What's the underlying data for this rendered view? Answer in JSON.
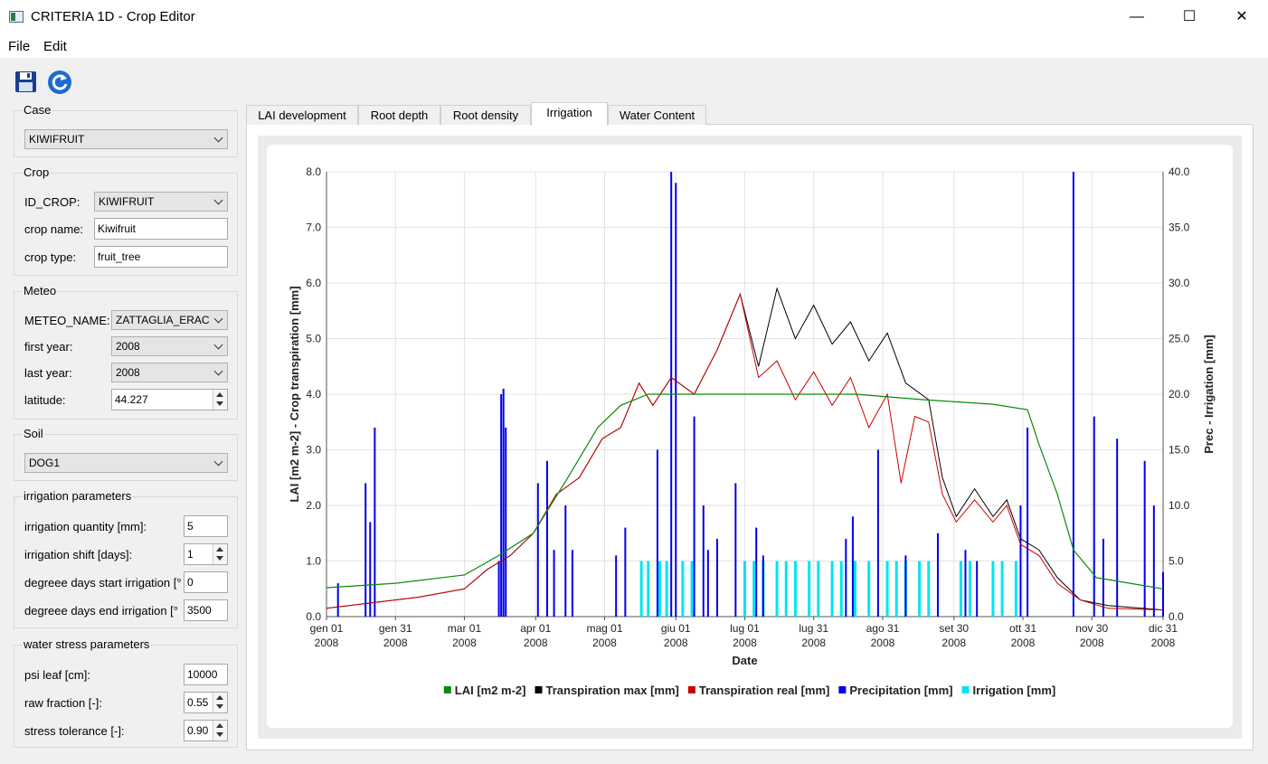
{
  "window": {
    "title": "CRITERIA 1D - Crop Editor",
    "minimize": "—",
    "maximize": "☐",
    "close": "✕"
  },
  "menu": {
    "file": "File",
    "edit": "Edit"
  },
  "toolbar": {
    "save_icon": "save-icon",
    "reload_icon": "refresh-icon"
  },
  "case": {
    "title": "Case",
    "value": "KIWIFRUIT"
  },
  "crop": {
    "title": "Crop",
    "id_label": "ID_CROP:",
    "id_value": "KIWIFRUIT",
    "name_label": "crop name:",
    "name_value": "Kiwifruit",
    "type_label": "crop type:",
    "type_value": "fruit_tree"
  },
  "meteo": {
    "title": "Meteo",
    "name_label": "METEO_NAME:",
    "name_value": "ZATTAGLIA_ERAC",
    "first_label": "first year:",
    "first_value": "2008",
    "last_label": "last year:",
    "last_value": "2008",
    "lat_label": "latitude:",
    "lat_value": "44.227"
  },
  "soil": {
    "title": "Soil",
    "value": "DOG1"
  },
  "irrigation": {
    "title": "irrigation parameters",
    "qty_label": "irrigation quantity [mm]:",
    "qty_value": "5",
    "shift_label": "irrigation shift [days]:",
    "shift_value": "1",
    "start_label": "degreee days start irrigation [°",
    "start_value": "0",
    "end_label": "degreee days end irrigation [°",
    "end_value": "3500"
  },
  "stress": {
    "title": "water stress parameters",
    "psi_label": "psi leaf [cm]:",
    "psi_value": "10000",
    "raw_label": "raw fraction [-]:",
    "raw_value": "0.55",
    "tol_label": "stress tolerance [-]:",
    "tol_value": "0.90"
  },
  "tabs": [
    {
      "label": "LAI development",
      "active": false
    },
    {
      "label": "Root depth",
      "active": false
    },
    {
      "label": "Root density",
      "active": false
    },
    {
      "label": "Irrigation",
      "active": true
    },
    {
      "label": "Water Content",
      "active": false
    }
  ],
  "chart_data": {
    "type": "bar+line",
    "xlabel": "Date",
    "ylabel_left": "LAI [m2 m-2] - Crop transpiration [mm]",
    "ylabel_right": "Prec - Irrigation [mm]",
    "ylim_left": [
      0,
      8
    ],
    "ylim_right": [
      0,
      40
    ],
    "yticks_left": [
      "0.0",
      "1.0",
      "2.0",
      "3.0",
      "4.0",
      "5.0",
      "6.0",
      "7.0",
      "8.0"
    ],
    "yticks_right": [
      "0.0",
      "5.0",
      "10.0",
      "15.0",
      "20.0",
      "25.0",
      "30.0",
      "35.0",
      "40.0"
    ],
    "xticks": [
      {
        "day": 0,
        "label": "gen 01",
        "year": "2008"
      },
      {
        "day": 30,
        "label": "gen 31",
        "year": "2008"
      },
      {
        "day": 60,
        "label": "mar 01",
        "year": "2008"
      },
      {
        "day": 91,
        "label": "apr 01",
        "year": "2008"
      },
      {
        "day": 121,
        "label": "mag 01",
        "year": "2008"
      },
      {
        "day": 152,
        "label": "giu 01",
        "year": "2008"
      },
      {
        "day": 182,
        "label": "lug 01",
        "year": "2008"
      },
      {
        "day": 212,
        "label": "lug 31",
        "year": "2008"
      },
      {
        "day": 242,
        "label": "ago 31",
        "year": "2008"
      },
      {
        "day": 273,
        "label": "set 30",
        "year": "2008"
      },
      {
        "day": 303,
        "label": "ott 31",
        "year": "2008"
      },
      {
        "day": 333,
        "label": "nov 30",
        "year": "2008"
      },
      {
        "day": 364,
        "label": "dic 31",
        "year": "2008"
      }
    ],
    "grid": true,
    "legend_position": "bottom",
    "legend": [
      {
        "name": "LAI [m2 m-2]",
        "color": "#0b8a0b"
      },
      {
        "name": "Transpiration max [mm]",
        "color": "#000000"
      },
      {
        "name": "Transpiration real [mm]",
        "color": "#cc0000"
      },
      {
        "name": "Precipitation [mm]",
        "color": "#0000ee"
      },
      {
        "name": "Irrigation [mm]",
        "color": "#00e5f0"
      }
    ],
    "lai": [
      [
        0,
        0.52
      ],
      [
        30,
        0.6
      ],
      [
        60,
        0.75
      ],
      [
        75,
        1.1
      ],
      [
        90,
        1.5
      ],
      [
        105,
        2.5
      ],
      [
        118,
        3.4
      ],
      [
        128,
        3.8
      ],
      [
        140,
        4.0
      ],
      [
        180,
        4.0
      ],
      [
        230,
        4.0
      ],
      [
        260,
        3.9
      ],
      [
        290,
        3.82
      ],
      [
        305,
        3.72
      ],
      [
        310,
        3.1
      ],
      [
        318,
        2.2
      ],
      [
        325,
        1.2
      ],
      [
        335,
        0.7
      ],
      [
        364,
        0.5
      ]
    ],
    "transpiration_max": [
      [
        0,
        0.15
      ],
      [
        20,
        0.25
      ],
      [
        40,
        0.35
      ],
      [
        60,
        0.5
      ],
      [
        70,
        0.85
      ],
      [
        80,
        1.1
      ],
      [
        90,
        1.5
      ],
      [
        100,
        2.2
      ],
      [
        110,
        2.5
      ],
      [
        120,
        3.2
      ],
      [
        128,
        3.4
      ],
      [
        136,
        4.2
      ],
      [
        142,
        3.8
      ],
      [
        150,
        4.3
      ],
      [
        160,
        4.0
      ],
      [
        170,
        4.8
      ],
      [
        180,
        5.8
      ],
      [
        188,
        4.5
      ],
      [
        196,
        5.9
      ],
      [
        204,
        5.0
      ],
      [
        212,
        5.6
      ],
      [
        220,
        4.9
      ],
      [
        228,
        5.3
      ],
      [
        236,
        4.6
      ],
      [
        244,
        5.1
      ],
      [
        252,
        4.2
      ],
      [
        262,
        3.9
      ],
      [
        268,
        2.5
      ],
      [
        274,
        1.8
      ],
      [
        282,
        2.3
      ],
      [
        290,
        1.8
      ],
      [
        296,
        2.1
      ],
      [
        302,
        1.4
      ],
      [
        310,
        1.2
      ],
      [
        318,
        0.7
      ],
      [
        328,
        0.3
      ],
      [
        340,
        0.2
      ],
      [
        364,
        0.12
      ]
    ],
    "transpiration_real": [
      [
        0,
        0.15
      ],
      [
        20,
        0.25
      ],
      [
        40,
        0.35
      ],
      [
        60,
        0.5
      ],
      [
        70,
        0.85
      ],
      [
        80,
        1.1
      ],
      [
        90,
        1.5
      ],
      [
        100,
        2.2
      ],
      [
        110,
        2.5
      ],
      [
        120,
        3.2
      ],
      [
        128,
        3.4
      ],
      [
        136,
        4.2
      ],
      [
        142,
        3.8
      ],
      [
        150,
        4.3
      ],
      [
        160,
        4.0
      ],
      [
        170,
        4.8
      ],
      [
        180,
        5.8
      ],
      [
        188,
        4.3
      ],
      [
        196,
        4.6
      ],
      [
        204,
        3.9
      ],
      [
        212,
        4.4
      ],
      [
        220,
        3.8
      ],
      [
        228,
        4.3
      ],
      [
        236,
        3.4
      ],
      [
        244,
        4.0
      ],
      [
        250,
        2.4
      ],
      [
        256,
        3.6
      ],
      [
        262,
        3.5
      ],
      [
        268,
        2.2
      ],
      [
        274,
        1.7
      ],
      [
        282,
        2.1
      ],
      [
        290,
        1.7
      ],
      [
        296,
        2.0
      ],
      [
        302,
        1.3
      ],
      [
        310,
        1.1
      ],
      [
        318,
        0.6
      ],
      [
        328,
        0.3
      ],
      [
        340,
        0.15
      ],
      [
        364,
        0.12
      ]
    ],
    "precipitation": [
      [
        5,
        3
      ],
      [
        17,
        12
      ],
      [
        19,
        8.5
      ],
      [
        21,
        17
      ],
      [
        75,
        5
      ],
      [
        76,
        20
      ],
      [
        77,
        20.5
      ],
      [
        78,
        17
      ],
      [
        92,
        12
      ],
      [
        96,
        14
      ],
      [
        99,
        6
      ],
      [
        104,
        10
      ],
      [
        107,
        6
      ],
      [
        126,
        5.5
      ],
      [
        130,
        8
      ],
      [
        144,
        15
      ],
      [
        150,
        40
      ],
      [
        152,
        39
      ],
      [
        160,
        18
      ],
      [
        164,
        10
      ],
      [
        166,
        6
      ],
      [
        170,
        7
      ],
      [
        178,
        12
      ],
      [
        187,
        8
      ],
      [
        190,
        5.5
      ],
      [
        226,
        7
      ],
      [
        229,
        9
      ],
      [
        240,
        15
      ],
      [
        252,
        5.5
      ],
      [
        266,
        7.5
      ],
      [
        278,
        6
      ],
      [
        283,
        5
      ],
      [
        302,
        10
      ],
      [
        305,
        17
      ],
      [
        325,
        40
      ],
      [
        334,
        18
      ],
      [
        338,
        7
      ],
      [
        344,
        16
      ],
      [
        356,
        14
      ],
      [
        360,
        10
      ],
      [
        364,
        4
      ]
    ],
    "irrigation": [
      [
        137,
        5
      ],
      [
        140,
        5
      ],
      [
        145,
        5
      ],
      [
        148,
        5
      ],
      [
        155,
        5
      ],
      [
        159,
        5
      ],
      [
        182,
        5
      ],
      [
        186,
        5
      ],
      [
        190,
        5
      ],
      [
        196,
        5
      ],
      [
        200,
        5
      ],
      [
        204,
        5
      ],
      [
        210,
        5
      ],
      [
        214,
        5
      ],
      [
        220,
        5
      ],
      [
        224,
        5
      ],
      [
        230,
        5
      ],
      [
        236,
        5
      ],
      [
        244,
        5
      ],
      [
        248,
        5
      ],
      [
        252,
        5
      ],
      [
        258,
        5
      ],
      [
        262,
        5
      ],
      [
        276,
        5
      ],
      [
        280,
        5
      ],
      [
        290,
        5
      ],
      [
        294,
        5
      ],
      [
        300,
        5
      ]
    ]
  }
}
